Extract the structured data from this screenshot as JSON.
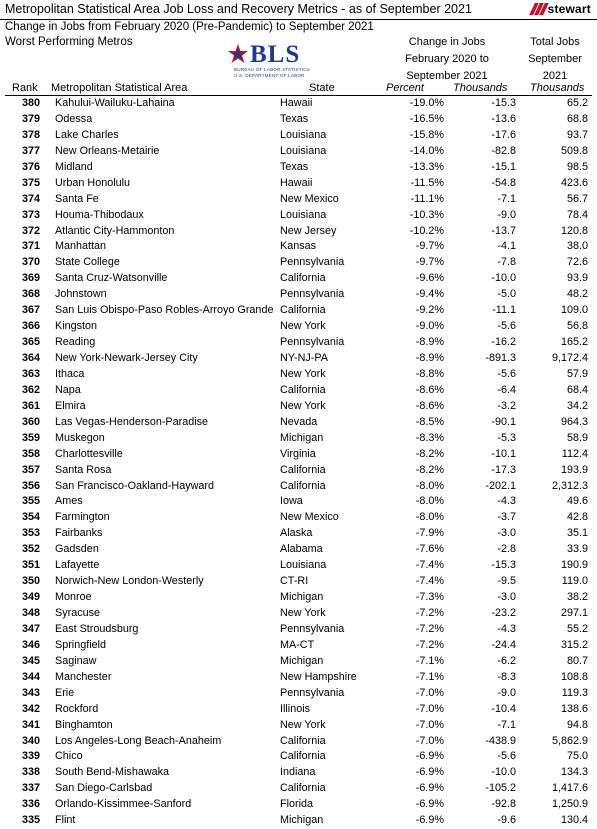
{
  "title": "Metropolitan Statistical Area Job Loss and Recovery Metrics - as of September 2021",
  "logo_text": "stewart",
  "subtitle1": "Change in Jobs from February 2020 (Pre-Pandemic) to September 2021",
  "subtitle2": "Worst Performing Metros",
  "bls": {
    "word": "BLS",
    "line1": "BUREAU OF LABOR STATISTICS",
    "line2": "U.S. DEPARTMENT OF LABOR"
  },
  "headers": {
    "change_group_l1": "Change in Jobs",
    "change_group_l2": "February 2020 to",
    "change_group_l3": "September 2021",
    "total_l1": "Total Jobs",
    "total_l2": "September",
    "total_l3": "2021",
    "rank": "Rank",
    "metro": "Metropolitan Statistical Area",
    "state": "State",
    "percent": "Percent",
    "thousands": "Thousands",
    "total_thousands": "Thousands"
  },
  "rows": [
    {
      "rank": "380",
      "metro": "Kahului-Wailuku-Lahaina",
      "state": "Hawaii",
      "pct": "-19.0%",
      "thou": "-15.3",
      "total": "65.2"
    },
    {
      "rank": "379",
      "metro": "Odessa",
      "state": "Texas",
      "pct": "-16.5%",
      "thou": "-13.6",
      "total": "68.8"
    },
    {
      "rank": "378",
      "metro": "Lake Charles",
      "state": "Louisiana",
      "pct": "-15.8%",
      "thou": "-17.6",
      "total": "93.7"
    },
    {
      "rank": "377",
      "metro": "New Orleans-Metairie",
      "state": "Louisiana",
      "pct": "-14.0%",
      "thou": "-82.8",
      "total": "509.8"
    },
    {
      "rank": "376",
      "metro": "Midland",
      "state": "Texas",
      "pct": "-13.3%",
      "thou": "-15.1",
      "total": "98.5"
    },
    {
      "rank": "375",
      "metro": "Urban Honolulu",
      "state": "Hawaii",
      "pct": "-11.5%",
      "thou": "-54.8",
      "total": "423.6"
    },
    {
      "rank": "374",
      "metro": "Santa Fe",
      "state": "New Mexico",
      "pct": "-11.1%",
      "thou": "-7.1",
      "total": "56.7"
    },
    {
      "rank": "373",
      "metro": "Houma-Thibodaux",
      "state": "Louisiana",
      "pct": "-10.3%",
      "thou": "-9.0",
      "total": "78.4"
    },
    {
      "rank": "372",
      "metro": "Atlantic City-Hammonton",
      "state": "New Jersey",
      "pct": "-10.2%",
      "thou": "-13.7",
      "total": "120.8"
    },
    {
      "rank": "371",
      "metro": "Manhattan",
      "state": "Kansas",
      "pct": "-9.7%",
      "thou": "-4.1",
      "total": "38.0"
    },
    {
      "rank": "370",
      "metro": "State College",
      "state": "Pennsylvania",
      "pct": "-9.7%",
      "thou": "-7.8",
      "total": "72.6"
    },
    {
      "rank": "369",
      "metro": "Santa Cruz-Watsonville",
      "state": "California",
      "pct": "-9.6%",
      "thou": "-10.0",
      "total": "93.9"
    },
    {
      "rank": "368",
      "metro": "Johnstown",
      "state": "Pennsylvania",
      "pct": "-9.4%",
      "thou": "-5.0",
      "total": "48.2"
    },
    {
      "rank": "367",
      "metro": "San Luis Obispo-Paso Robles-Arroyo Grande",
      "state": "California",
      "pct": "-9.2%",
      "thou": "-11.1",
      "total": "109.0"
    },
    {
      "rank": "366",
      "metro": "Kingston",
      "state": "New York",
      "pct": "-9.0%",
      "thou": "-5.6",
      "total": "56.8"
    },
    {
      "rank": "365",
      "metro": "Reading",
      "state": "Pennsylvania",
      "pct": "-8.9%",
      "thou": "-16.2",
      "total": "165.2"
    },
    {
      "rank": "364",
      "metro": "New York-Newark-Jersey City",
      "state": "NY-NJ-PA",
      "pct": "-8.9%",
      "thou": "-891.3",
      "total": "9,172.4"
    },
    {
      "rank": "363",
      "metro": "Ithaca",
      "state": "New York",
      "pct": "-8.8%",
      "thou": "-5.6",
      "total": "57.9"
    },
    {
      "rank": "362",
      "metro": "Napa",
      "state": "California",
      "pct": "-8.6%",
      "thou": "-6.4",
      "total": "68.4"
    },
    {
      "rank": "361",
      "metro": "Elmira",
      "state": "New York",
      "pct": "-8.6%",
      "thou": "-3.2",
      "total": "34.2"
    },
    {
      "rank": "360",
      "metro": "Las Vegas-Henderson-Paradise",
      "state": "Nevada",
      "pct": "-8.5%",
      "thou": "-90.1",
      "total": "964.3"
    },
    {
      "rank": "359",
      "metro": "Muskegon",
      "state": "Michigan",
      "pct": "-8.3%",
      "thou": "-5.3",
      "total": "58.9"
    },
    {
      "rank": "358",
      "metro": "Charlottesville",
      "state": "Virginia",
      "pct": "-8.2%",
      "thou": "-10.1",
      "total": "112.4"
    },
    {
      "rank": "357",
      "metro": "Santa Rosa",
      "state": "California",
      "pct": "-8.2%",
      "thou": "-17.3",
      "total": "193.9"
    },
    {
      "rank": "356",
      "metro": "San Francisco-Oakland-Hayward",
      "state": "California",
      "pct": "-8.0%",
      "thou": "-202.1",
      "total": "2,312.3"
    },
    {
      "rank": "355",
      "metro": "Ames",
      "state": "Iowa",
      "pct": "-8.0%",
      "thou": "-4.3",
      "total": "49.6"
    },
    {
      "rank": "354",
      "metro": "Farmington",
      "state": "New Mexico",
      "pct": "-8.0%",
      "thou": "-3.7",
      "total": "42.8"
    },
    {
      "rank": "353",
      "metro": "Fairbanks",
      "state": "Alaska",
      "pct": "-7.9%",
      "thou": "-3.0",
      "total": "35.1"
    },
    {
      "rank": "352",
      "metro": "Gadsden",
      "state": "Alabama",
      "pct": "-7.6%",
      "thou": "-2.8",
      "total": "33.9"
    },
    {
      "rank": "351",
      "metro": "Lafayette",
      "state": "Louisiana",
      "pct": "-7.4%",
      "thou": "-15.3",
      "total": "190.9"
    },
    {
      "rank": "350",
      "metro": "Norwich-New London-Westerly",
      "state": "CT-RI",
      "pct": "-7.4%",
      "thou": "-9.5",
      "total": "119.0"
    },
    {
      "rank": "349",
      "metro": "Monroe",
      "state": "Michigan",
      "pct": "-7.3%",
      "thou": "-3.0",
      "total": "38.2"
    },
    {
      "rank": "348",
      "metro": "Syracuse",
      "state": "New York",
      "pct": "-7.2%",
      "thou": "-23.2",
      "total": "297.1"
    },
    {
      "rank": "347",
      "metro": "East Stroudsburg",
      "state": "Pennsylvania",
      "pct": "-7.2%",
      "thou": "-4.3",
      "total": "55.2"
    },
    {
      "rank": "346",
      "metro": "Springfield",
      "state": "MA-CT",
      "pct": "-7.2%",
      "thou": "-24.4",
      "total": "315.2"
    },
    {
      "rank": "345",
      "metro": "Saginaw",
      "state": "Michigan",
      "pct": "-7.1%",
      "thou": "-6.2",
      "total": "80.7"
    },
    {
      "rank": "344",
      "metro": "Manchester",
      "state": "New Hampshire",
      "pct": "-7.1%",
      "thou": "-8.3",
      "total": "108.8"
    },
    {
      "rank": "343",
      "metro": "Erie",
      "state": "Pennsylvania",
      "pct": "-7.0%",
      "thou": "-9.0",
      "total": "119.3"
    },
    {
      "rank": "342",
      "metro": "Rockford",
      "state": "Illinois",
      "pct": "-7.0%",
      "thou": "-10.4",
      "total": "138.6"
    },
    {
      "rank": "341",
      "metro": "Binghamton",
      "state": "New York",
      "pct": "-7.0%",
      "thou": "-7.1",
      "total": "94.8"
    },
    {
      "rank": "340",
      "metro": "Los Angeles-Long Beach-Anaheim",
      "state": "California",
      "pct": "-7.0%",
      "thou": "-438.9",
      "total": "5,862.9"
    },
    {
      "rank": "339",
      "metro": "Chico",
      "state": "California",
      "pct": "-6.9%",
      "thou": "-5.6",
      "total": "75.0"
    },
    {
      "rank": "338",
      "metro": "South Bend-Mishawaka",
      "state": "Indiana",
      "pct": "-6.9%",
      "thou": "-10.0",
      "total": "134.3"
    },
    {
      "rank": "337",
      "metro": "San Diego-Carlsbad",
      "state": "California",
      "pct": "-6.9%",
      "thou": "-105.2",
      "total": "1,417.6"
    },
    {
      "rank": "336",
      "metro": "Orlando-Kissimmee-Sanford",
      "state": "Florida",
      "pct": "-6.9%",
      "thou": "-92.8",
      "total": "1,250.9"
    },
    {
      "rank": "335",
      "metro": "Flint",
      "state": "Michigan",
      "pct": "-6.9%",
      "thou": "-9.6",
      "total": "130.4"
    }
  ]
}
